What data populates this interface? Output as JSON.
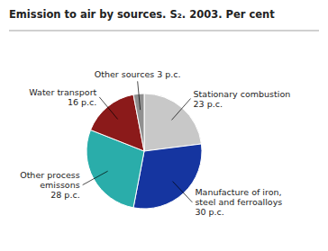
{
  "chart_data": {
    "type": "pie",
    "title": "Emission to air by sources. S₂. 2003. Per cent",
    "categories": [
      "Stationary combustion\n23 p.c.",
      "Manufacture of iron,\nsteel and ferroalloys\n30 p.c.",
      "Other process\nemissons\n28 p.c.",
      "Water transport\n16 p.c.",
      "Other sources 3 p.c."
    ],
    "values": [
      23,
      30,
      28,
      16,
      3
    ],
    "colors": [
      "#c8c8c8",
      "#1535a0",
      "#2aadaa",
      "#8b1a1a",
      "#909090"
    ]
  }
}
